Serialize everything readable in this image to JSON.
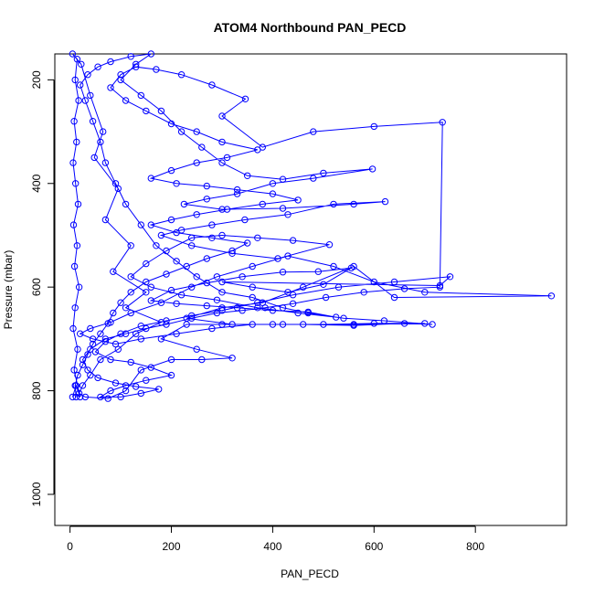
{
  "chart_data": {
    "type": "scatter",
    "title": "ATOM4 Northbound PAN_PECD",
    "xlabel": "PAN_PECD",
    "ylabel": "Pressure (mbar)",
    "xlim": [
      -30,
      980
    ],
    "ylim": [
      1060,
      150
    ],
    "y_reversed": true,
    "x_ticks": [
      0,
      200,
      400,
      600,
      800
    ],
    "y_ticks": [
      200,
      400,
      600,
      800,
      1000
    ],
    "grid": false,
    "marker": "open-circle",
    "connected": true,
    "series": [
      {
        "color": "#0000ff",
        "points": [
          [
            5,
            812
          ],
          [
            12,
            790
          ],
          [
            20,
            812
          ],
          [
            8,
            760
          ],
          [
            15,
            720
          ],
          [
            6,
            680
          ],
          [
            10,
            640
          ],
          [
            18,
            600
          ],
          [
            9,
            560
          ],
          [
            14,
            520
          ],
          [
            7,
            480
          ],
          [
            16,
            440
          ],
          [
            11,
            400
          ],
          [
            6,
            360
          ],
          [
            13,
            320
          ],
          [
            8,
            280
          ],
          [
            17,
            240
          ],
          [
            10,
            200
          ],
          [
            14,
            160
          ],
          [
            5,
            150
          ],
          [
            22,
            170
          ],
          [
            40,
            230
          ],
          [
            65,
            300
          ],
          [
            48,
            350
          ],
          [
            95,
            410
          ],
          [
            70,
            470
          ],
          [
            120,
            520
          ],
          [
            85,
            570
          ],
          [
            150,
            610
          ],
          [
            110,
            640
          ],
          [
            180,
            668
          ],
          [
            130,
            690
          ],
          [
            95,
            720
          ],
          [
            60,
            740
          ],
          [
            40,
            770
          ],
          [
            25,
            790
          ],
          [
            18,
            805
          ],
          [
            30,
            812
          ],
          [
            75,
            815
          ],
          [
            110,
            800
          ],
          [
            140,
            760
          ],
          [
            200,
            740
          ],
          [
            260,
            740
          ],
          [
            320,
            737
          ],
          [
            250,
            720
          ],
          [
            180,
            700
          ],
          [
            230,
            672
          ],
          [
            300,
            672
          ],
          [
            400,
            672
          ],
          [
            500,
            672
          ],
          [
            600,
            670
          ],
          [
            700,
            670
          ],
          [
            560,
            672
          ],
          [
            420,
            672
          ],
          [
            320,
            672
          ],
          [
            230,
            660
          ],
          [
            300,
            640
          ],
          [
            380,
            630
          ],
          [
            460,
            600
          ],
          [
            560,
            560
          ],
          [
            640,
            620
          ],
          [
            950,
            617
          ],
          [
            700,
            610
          ],
          [
            600,
            590
          ],
          [
            520,
            560
          ],
          [
            430,
            540
          ],
          [
            360,
            560
          ],
          [
            290,
            580
          ],
          [
            240,
            600
          ],
          [
            180,
            630
          ],
          [
            120,
            650
          ],
          [
            80,
            668
          ],
          [
            40,
            680
          ],
          [
            20,
            690
          ],
          [
            45,
            700
          ],
          [
            90,
            710
          ],
          [
            140,
            700
          ],
          [
            210,
            690
          ],
          [
            280,
            680
          ],
          [
            360,
            672
          ],
          [
            460,
            672
          ],
          [
            560,
            674
          ],
          [
            660,
            670
          ],
          [
            715,
            672
          ],
          [
            620,
            665
          ],
          [
            540,
            660
          ],
          [
            470,
            650
          ],
          [
            420,
            640
          ],
          [
            360,
            620
          ],
          [
            300,
            610
          ],
          [
            250,
            580
          ],
          [
            210,
            550
          ],
          [
            170,
            520
          ],
          [
            140,
            480
          ],
          [
            110,
            440
          ],
          [
            90,
            400
          ],
          [
            70,
            360
          ],
          [
            60,
            320
          ],
          [
            45,
            280
          ],
          [
            30,
            240
          ],
          [
            20,
            210
          ],
          [
            35,
            190
          ],
          [
            55,
            175
          ],
          [
            80,
            165
          ],
          [
            120,
            155
          ],
          [
            160,
            150
          ],
          [
            130,
            170
          ],
          [
            100,
            200
          ],
          [
            140,
            230
          ],
          [
            180,
            260
          ],
          [
            220,
            300
          ],
          [
            260,
            330
          ],
          [
            300,
            360
          ],
          [
            350,
            385
          ],
          [
            420,
            392
          ],
          [
            500,
            380
          ],
          [
            597,
            372
          ],
          [
            480,
            390
          ],
          [
            400,
            400
          ],
          [
            330,
            420
          ],
          [
            270,
            430
          ],
          [
            225,
            440
          ],
          [
            300,
            450
          ],
          [
            420,
            448
          ],
          [
            560,
            440
          ],
          [
            622,
            435
          ],
          [
            520,
            440
          ],
          [
            430,
            460
          ],
          [
            345,
            470
          ],
          [
            280,
            480
          ],
          [
            220,
            490
          ],
          [
            180,
            500
          ],
          [
            240,
            520
          ],
          [
            320,
            535
          ],
          [
            410,
            545
          ],
          [
            512,
            518
          ],
          [
            440,
            510
          ],
          [
            370,
            505
          ],
          [
            300,
            500
          ],
          [
            240,
            505
          ],
          [
            190,
            530
          ],
          [
            150,
            555
          ],
          [
            120,
            580
          ],
          [
            160,
            600
          ],
          [
            220,
            615
          ],
          [
            290,
            625
          ],
          [
            370,
            640
          ],
          [
            450,
            650
          ],
          [
            525,
            658
          ],
          [
            470,
            648
          ],
          [
            400,
            645
          ],
          [
            330,
            640
          ],
          [
            270,
            636
          ],
          [
            210,
            632
          ],
          [
            160,
            626
          ],
          [
            200,
            606
          ],
          [
            270,
            592
          ],
          [
            340,
            580
          ],
          [
            420,
            571
          ],
          [
            490,
            570
          ],
          [
            555,
            563
          ],
          [
            500,
            595
          ],
          [
            430,
            610
          ],
          [
            360,
            600
          ],
          [
            300,
            590
          ],
          [
            730,
            597
          ],
          [
            750,
            580
          ],
          [
            640,
            590
          ],
          [
            530,
            600
          ],
          [
            440,
            615
          ],
          [
            370,
            630
          ],
          [
            300,
            645
          ],
          [
            240,
            655
          ],
          [
            190,
            665
          ],
          [
            140,
            675
          ],
          [
            100,
            690
          ],
          [
            70,
            705
          ],
          [
            50,
            725
          ],
          [
            80,
            740
          ],
          [
            120,
            745
          ],
          [
            160,
            755
          ],
          [
            200,
            770
          ],
          [
            150,
            780
          ],
          [
            110,
            790
          ],
          [
            80,
            800
          ],
          [
            60,
            812
          ],
          [
            100,
            812
          ],
          [
            140,
            805
          ],
          [
            175,
            797
          ],
          [
            130,
            792
          ],
          [
            90,
            785
          ],
          [
            55,
            775
          ],
          [
            35,
            760
          ],
          [
            25,
            740
          ],
          [
            40,
            720
          ],
          [
            70,
            700
          ],
          [
            110,
            690
          ],
          [
            150,
            680
          ],
          [
            190,
            672
          ],
          [
            240,
            660
          ],
          [
            290,
            650
          ],
          [
            340,
            645
          ],
          [
            385,
            640
          ],
          [
            440,
            632
          ],
          [
            505,
            620
          ],
          [
            580,
            610
          ],
          [
            660,
            603
          ],
          [
            730,
            600
          ],
          [
            735,
            282
          ],
          [
            600,
            290
          ],
          [
            480,
            300
          ],
          [
            380,
            330
          ],
          [
            300,
            270
          ],
          [
            346,
            237
          ],
          [
            280,
            210
          ],
          [
            220,
            190
          ],
          [
            170,
            180
          ],
          [
            130,
            175
          ],
          [
            100,
            190
          ],
          [
            80,
            215
          ],
          [
            110,
            240
          ],
          [
            150,
            260
          ],
          [
            200,
            285
          ],
          [
            250,
            300
          ],
          [
            300,
            320
          ],
          [
            370,
            335
          ],
          [
            310,
            350
          ],
          [
            250,
            360
          ],
          [
            200,
            375
          ],
          [
            160,
            390
          ],
          [
            210,
            400
          ],
          [
            270,
            405
          ],
          [
            330,
            412
          ],
          [
            400,
            420
          ],
          [
            450,
            432
          ],
          [
            380,
            440
          ],
          [
            310,
            450
          ],
          [
            250,
            460
          ],
          [
            200,
            470
          ],
          [
            160,
            480
          ],
          [
            210,
            495
          ],
          [
            280,
            505
          ],
          [
            350,
            515
          ],
          [
            320,
            530
          ],
          [
            270,
            545
          ],
          [
            230,
            560
          ],
          [
            190,
            575
          ],
          [
            150,
            590
          ],
          [
            120,
            610
          ],
          [
            100,
            630
          ],
          [
            85,
            650
          ],
          [
            75,
            670
          ],
          [
            60,
            690
          ],
          [
            45,
            710
          ],
          [
            35,
            730
          ],
          [
            25,
            750
          ],
          [
            15,
            770
          ],
          [
            10,
            790
          ],
          [
            12,
            812
          ]
        ]
      }
    ]
  }
}
